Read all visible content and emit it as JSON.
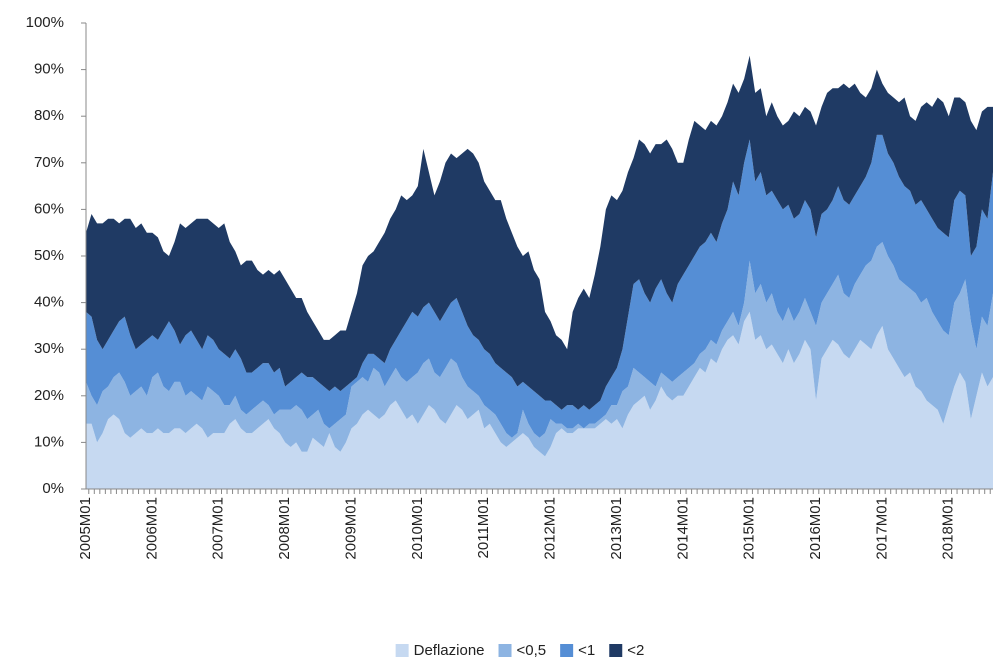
{
  "chart_data": {
    "type": "stacked-area",
    "categories": [
      "2005M01",
      null,
      null,
      null,
      null,
      null,
      null,
      null,
      null,
      null,
      null,
      null,
      "2006M01",
      null,
      null,
      null,
      null,
      null,
      null,
      null,
      null,
      null,
      null,
      null,
      "2007M01",
      null,
      null,
      null,
      null,
      null,
      null,
      null,
      null,
      null,
      null,
      null,
      "2008M01",
      null,
      null,
      null,
      null,
      null,
      null,
      null,
      null,
      null,
      null,
      null,
      "2009M01",
      null,
      null,
      null,
      null,
      null,
      null,
      null,
      null,
      null,
      null,
      null,
      "2010M01",
      null,
      null,
      null,
      null,
      null,
      null,
      null,
      null,
      null,
      null,
      null,
      "2011M01",
      null,
      null,
      null,
      null,
      null,
      null,
      null,
      null,
      null,
      null,
      null,
      "2012M01",
      null,
      null,
      null,
      null,
      null,
      null,
      null,
      null,
      null,
      null,
      null,
      "2013M01",
      null,
      null,
      null,
      null,
      null,
      null,
      null,
      null,
      null,
      null,
      null,
      "2014M01",
      null,
      null,
      null,
      null,
      null,
      null,
      null,
      null,
      null,
      null,
      null,
      "2015M01",
      null,
      null,
      null,
      null,
      null,
      null,
      null,
      null,
      null,
      null,
      null,
      "2016M01",
      null,
      null,
      null,
      null,
      null,
      null,
      null,
      null,
      null,
      null,
      null,
      "2017M01",
      null,
      null,
      null,
      null,
      null,
      null,
      null,
      null,
      null,
      null,
      null,
      "2018M01",
      null,
      null,
      null,
      null,
      null,
      null,
      null,
      null
    ],
    "series": [
      {
        "name": "Deflazione",
        "color": "#c6d9f1",
        "values": [
          14,
          14,
          10,
          12,
          15,
          16,
          15,
          12,
          11,
          12,
          13,
          12,
          12,
          13,
          12,
          12,
          13,
          13,
          12,
          13,
          14,
          13,
          11,
          12,
          12,
          12,
          14,
          15,
          13,
          12,
          12,
          13,
          14,
          15,
          13,
          12,
          10,
          9,
          10,
          8,
          8,
          11,
          10,
          9,
          12,
          9,
          8,
          10,
          13,
          14,
          16,
          17,
          16,
          15,
          16,
          18,
          19,
          17,
          15,
          16,
          14,
          16,
          18,
          17,
          15,
          14,
          16,
          18,
          17,
          15,
          16,
          17,
          13,
          14,
          12,
          10,
          9,
          10,
          11,
          12,
          11,
          9,
          8,
          7,
          9,
          12,
          13,
          12,
          12,
          13,
          13,
          13,
          13,
          14,
          15,
          14,
          15,
          13,
          16,
          18,
          19,
          20,
          17,
          19,
          22,
          20,
          19,
          20,
          20,
          22,
          24,
          26,
          25,
          28,
          27,
          30,
          32,
          33,
          31,
          36,
          38,
          32,
          33,
          30,
          31,
          29,
          27,
          30,
          27,
          29,
          32,
          30,
          19,
          28,
          30,
          32,
          31,
          29,
          28,
          30,
          32,
          31,
          30,
          33,
          35,
          30,
          28,
          26,
          24,
          25,
          22,
          21,
          19,
          18,
          17,
          14,
          18,
          22,
          25,
          23,
          15,
          20,
          25,
          22,
          24
        ]
      },
      {
        "name": "<0,5",
        "color": "#8db4e2",
        "values": [
          9,
          6,
          8,
          9,
          7,
          8,
          10,
          11,
          9,
          9,
          9,
          8,
          12,
          12,
          10,
          9,
          10,
          10,
          8,
          8,
          6,
          6,
          11,
          9,
          8,
          6,
          4,
          5,
          4,
          4,
          5,
          5,
          5,
          3,
          3,
          5,
          7,
          8,
          8,
          9,
          7,
          5,
          7,
          5,
          1,
          5,
          7,
          6,
          9,
          9,
          8,
          6,
          10,
          10,
          6,
          6,
          7,
          7,
          8,
          8,
          11,
          11,
          10,
          8,
          9,
          12,
          12,
          9,
          7,
          7,
          5,
          3,
          5,
          3,
          4,
          4,
          3,
          1,
          1,
          5,
          3,
          3,
          3,
          5,
          6,
          2,
          1,
          1,
          1,
          1,
          0,
          1,
          1,
          1,
          1,
          4,
          3,
          8,
          6,
          8,
          6,
          4,
          6,
          3,
          3,
          4,
          4,
          4,
          5,
          4,
          3,
          3,
          5,
          4,
          4,
          4,
          4,
          5,
          4,
          4,
          11,
          10,
          11,
          10,
          11,
          9,
          9,
          9,
          9,
          9,
          9,
          8,
          16,
          12,
          12,
          12,
          15,
          13,
          13,
          14,
          14,
          17,
          19,
          19,
          18,
          20,
          20,
          19,
          20,
          18,
          20,
          19,
          22,
          20,
          19,
          20,
          15,
          18,
          17,
          22,
          21,
          10,
          12,
          13,
          18
        ]
      },
      {
        "name": "<1",
        "color": "#558ed5",
        "values": [
          15,
          17,
          14,
          9,
          10,
          10,
          11,
          14,
          13,
          9,
          9,
          12,
          9,
          7,
          12,
          15,
          11,
          8,
          13,
          13,
          12,
          11,
          11,
          11,
          10,
          11,
          10,
          10,
          11,
          9,
          8,
          8,
          8,
          9,
          9,
          9,
          5,
          6,
          6,
          8,
          9,
          8,
          6,
          8,
          8,
          8,
          6,
          6,
          1,
          1,
          3,
          6,
          3,
          3,
          5,
          6,
          6,
          10,
          13,
          14,
          12,
          12,
          12,
          13,
          12,
          12,
          12,
          14,
          14,
          13,
          12,
          12,
          12,
          12,
          11,
          12,
          13,
          13,
          10,
          6,
          8,
          9,
          9,
          7,
          4,
          4,
          3,
          5,
          5,
          3,
          5,
          3,
          4,
          4,
          6,
          6,
          8,
          9,
          15,
          18,
          20,
          18,
          17,
          21,
          20,
          18,
          17,
          20,
          21,
          22,
          23,
          23,
          23,
          23,
          22,
          23,
          24,
          28,
          28,
          30,
          26,
          24,
          24,
          23,
          22,
          24,
          24,
          22,
          22,
          21,
          21,
          22,
          19,
          19,
          18,
          18,
          19,
          20,
          20,
          19,
          19,
          19,
          21,
          24,
          23,
          22,
          22,
          22,
          21,
          21,
          19,
          22,
          19,
          20,
          20,
          21,
          21,
          22,
          22,
          18,
          14,
          22,
          23,
          23,
          26
        ]
      },
      {
        "name": "<2",
        "color": "#1f3a64",
        "values": [
          17,
          22,
          25,
          27,
          26,
          24,
          21,
          21,
          25,
          26,
          26,
          23,
          22,
          22,
          17,
          14,
          19,
          26,
          23,
          23,
          26,
          28,
          25,
          25,
          26,
          28,
          25,
          21,
          20,
          24,
          24,
          21,
          19,
          20,
          21,
          21,
          23,
          20,
          17,
          16,
          14,
          12,
          11,
          10,
          11,
          11,
          13,
          12,
          15,
          18,
          21,
          21,
          22,
          25,
          28,
          28,
          28,
          29,
          26,
          25,
          28,
          34,
          28,
          25,
          30,
          32,
          32,
          30,
          34,
          38,
          39,
          38,
          36,
          35,
          35,
          36,
          33,
          31,
          30,
          27,
          29,
          26,
          25,
          19,
          17,
          15,
          15,
          12,
          20,
          24,
          25,
          24,
          28,
          33,
          38,
          39,
          36,
          34,
          31,
          27,
          30,
          32,
          32,
          31,
          29,
          33,
          33,
          26,
          24,
          27,
          29,
          26,
          24,
          24,
          25,
          23,
          23,
          21,
          22,
          18,
          18,
          19,
          18,
          17,
          19,
          18,
          18,
          18,
          23,
          21,
          20,
          21,
          24,
          23,
          25,
          24,
          21,
          25,
          25,
          24,
          20,
          17,
          16,
          14,
          11,
          13,
          14,
          16,
          19,
          16,
          18,
          20,
          23,
          24,
          28,
          28,
          26,
          22,
          20,
          20,
          29,
          25,
          21,
          24,
          14
        ]
      }
    ],
    "ylim": [
      0,
      100
    ],
    "yticks": [
      {
        "value": 0,
        "label": "0%"
      },
      {
        "value": 10,
        "label": "10%"
      },
      {
        "value": 20,
        "label": "20%"
      },
      {
        "value": 30,
        "label": "30%"
      },
      {
        "value": 40,
        "label": "40%"
      },
      {
        "value": 50,
        "label": "50%"
      },
      {
        "value": 60,
        "label": "60%"
      },
      {
        "value": 70,
        "label": "70%"
      },
      {
        "value": 80,
        "label": "80%"
      },
      {
        "value": 90,
        "label": "90%"
      },
      {
        "value": 100,
        "label": "100%"
      }
    ],
    "grid": false,
    "legend": "bottom"
  }
}
